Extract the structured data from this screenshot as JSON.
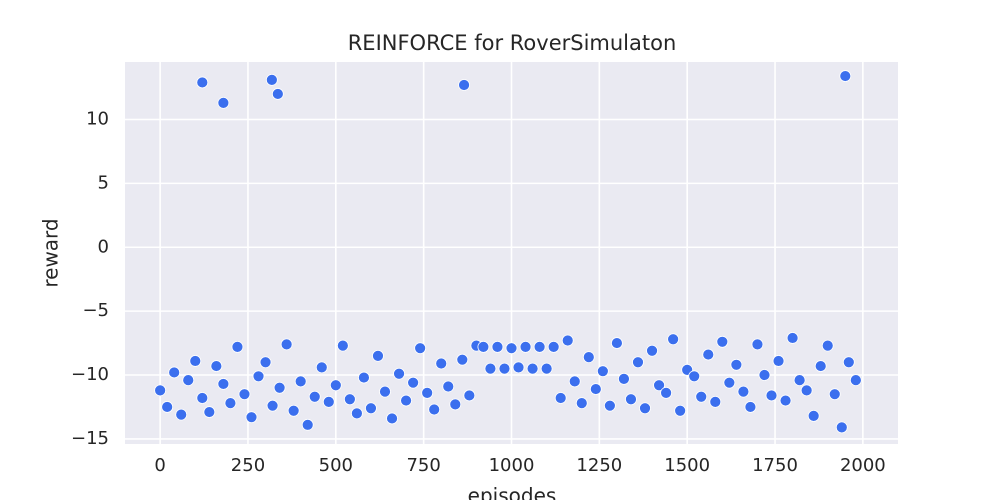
{
  "chart_data": {
    "type": "scatter",
    "title": "REINFORCE for RoverSimulaton",
    "xlabel": "episodes",
    "ylabel": "reward",
    "color": "#3b6fee",
    "background": "#eaeaf2",
    "grid": true,
    "xlim": [
      -100,
      2100
    ],
    "ylim": [
      -15.4,
      14.5
    ],
    "xticks": [
      0,
      250,
      500,
      750,
      1000,
      1250,
      1500,
      1750,
      2000
    ],
    "yticks": [
      {
        "value": -15,
        "label": "−15"
      },
      {
        "value": -10,
        "label": "−10"
      },
      {
        "value": -5,
        "label": "−5"
      },
      0,
      5,
      10
    ],
    "x": [
      0,
      20,
      40,
      60,
      80,
      100,
      120,
      140,
      160,
      180,
      200,
      220,
      240,
      260,
      280,
      300,
      320,
      340,
      360,
      380,
      400,
      420,
      440,
      460,
      480,
      500,
      520,
      540,
      560,
      580,
      600,
      620,
      640,
      660,
      680,
      700,
      720,
      740,
      760,
      780,
      800,
      820,
      840,
      860,
      880,
      900,
      920,
      940,
      960,
      980,
      1000,
      1020,
      1040,
      1060,
      1080,
      1100,
      1120,
      1140,
      1160,
      1180,
      1200,
      1220,
      1240,
      1260,
      1280,
      1300,
      1320,
      1340,
      1360,
      1380,
      1400,
      1420,
      1440,
      1460,
      1480,
      1500,
      1520,
      1540,
      1560,
      1580,
      1600,
      1620,
      1640,
      1660,
      1680,
      1700,
      1720,
      1740,
      1760,
      1780,
      1800,
      1820,
      1840,
      1860,
      1880,
      1900,
      1920,
      1940,
      1960,
      1980,
      120,
      180,
      318,
      335,
      865,
      1950
    ],
    "y": [
      -11.2,
      -12.5,
      -9.8,
      -13.1,
      -10.4,
      -8.9,
      -11.8,
      -12.9,
      -9.3,
      -10.7,
      -12.2,
      -7.8,
      -11.5,
      -13.3,
      -10.1,
      -9.0,
      -12.4,
      -11.0,
      -7.6,
      -12.8,
      -10.5,
      -13.9,
      -11.7,
      -9.4,
      -12.1,
      -10.8,
      -7.7,
      -11.9,
      -13.0,
      -10.2,
      -12.6,
      -8.5,
      -11.3,
      -13.4,
      -9.9,
      -12.0,
      -10.6,
      -7.9,
      -11.4,
      -12.7,
      -9.1,
      -10.9,
      -12.3,
      -8.8,
      -11.6,
      -7.7,
      -7.8,
      -9.5,
      -7.8,
      -9.5,
      -7.9,
      -9.4,
      -7.8,
      -9.5,
      -7.8,
      -9.5,
      -7.8,
      -11.8,
      -7.3,
      -10.5,
      -12.2,
      -8.6,
      -11.1,
      -9.7,
      -12.4,
      -7.5,
      -10.3,
      -11.9,
      -9.0,
      -12.6,
      -8.1,
      -10.8,
      -11.4,
      -7.2,
      -12.8,
      -9.6,
      -10.1,
      -11.7,
      -8.4,
      -12.1,
      -7.4,
      -10.6,
      -9.2,
      -11.3,
      -12.5,
      -7.6,
      -10.0,
      -11.6,
      -8.9,
      -12.0,
      -7.1,
      -10.4,
      -11.2,
      -13.2,
      -9.3,
      -7.7,
      -11.5,
      -14.1,
      -9.0,
      -10.4,
      12.9,
      11.3,
      13.1,
      12.0,
      12.7,
      13.4
    ]
  }
}
